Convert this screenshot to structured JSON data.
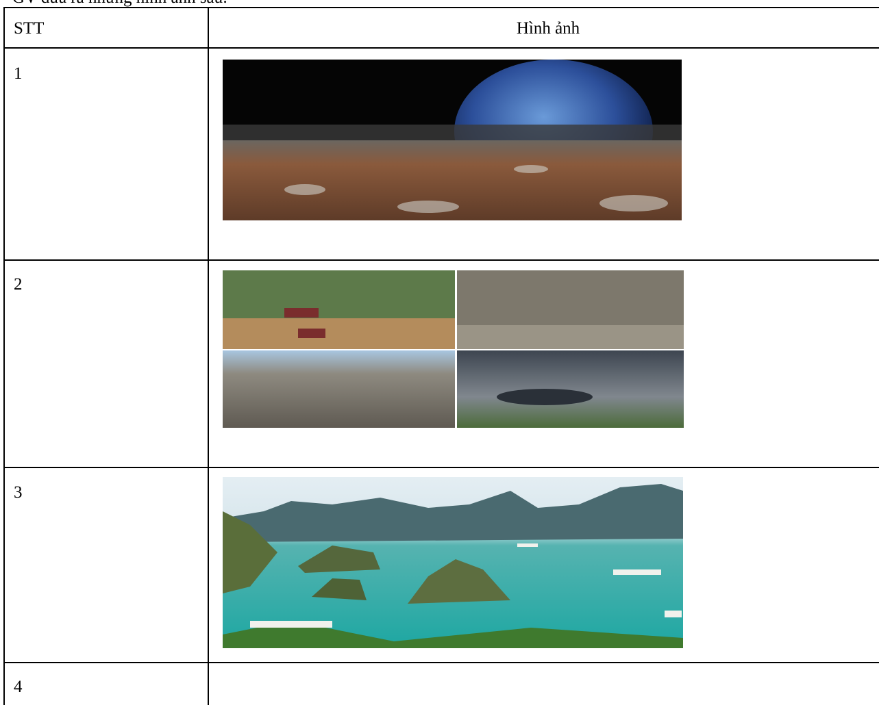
{
  "intro": "GV đưa ra những hình ảnh sau:",
  "table": {
    "header": [
      "STT",
      "Hình ảnh"
    ],
    "rows": [
      [
        "1"
      ],
      [
        "2"
      ],
      [
        "3"
      ],
      [
        "4"
      ]
    ]
  }
}
